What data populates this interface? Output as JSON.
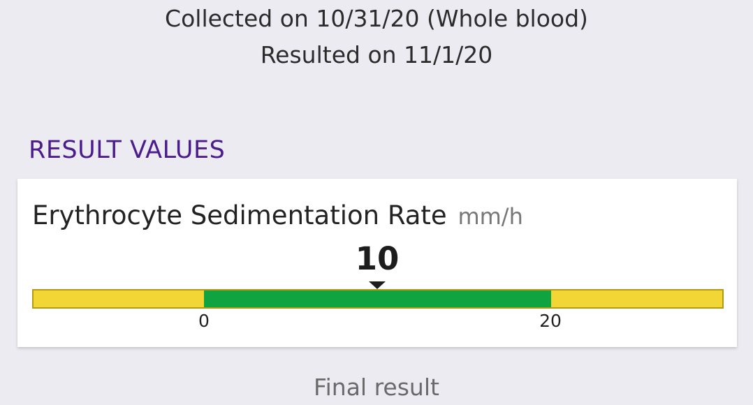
{
  "collection": {
    "collected_text": "Collected on 10/31/20 (Whole blood)",
    "resulted_text": "Resulted on 11/1/20"
  },
  "section": {
    "title": "RESULT VALUES"
  },
  "result": {
    "test_name": "Erythrocyte Sedimentation Rate",
    "unit": "mm/h",
    "value": "10",
    "range_low": "0",
    "range_high": "20",
    "value_fraction_on_bar": 0.5,
    "normal_range_fraction": [
      0.25,
      0.75
    ],
    "colors": {
      "normal": "#10a440",
      "out_of_range": "#f2d636",
      "bar_border": "#b39a14"
    }
  },
  "footer": {
    "status": "Final result"
  },
  "theme": {
    "background": "#edebf2",
    "section_title_color": "#4b1d8c"
  }
}
